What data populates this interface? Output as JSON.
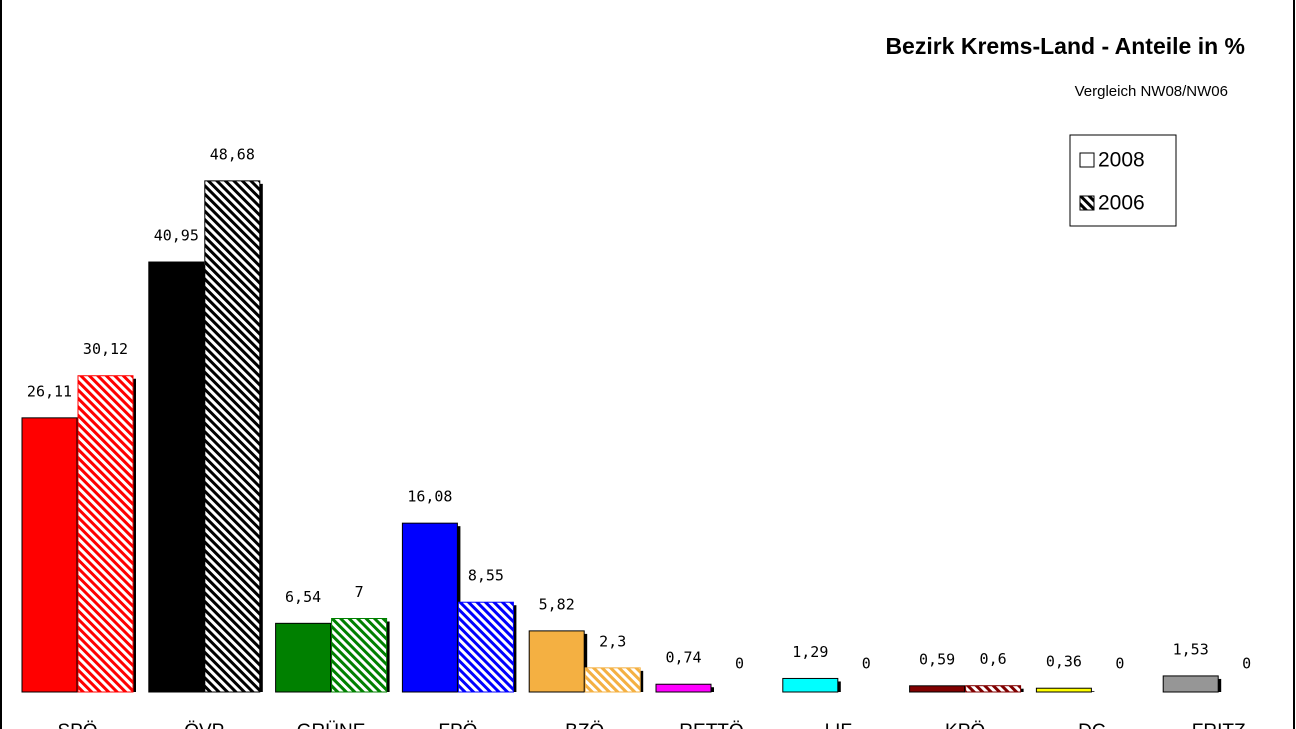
{
  "chart_data": {
    "type": "bar",
    "title": "Bezirk Krems-Land - Anteile in %",
    "subtitle": "Vergleich NW08/NW06",
    "categories": [
      "SPÖ",
      "ÖVP",
      "GRÜNE",
      "FPÖ",
      "BZÖ",
      "RETTÖ",
      "LIF",
      "KPÖ",
      "DC",
      "FRITZ"
    ],
    "colors": [
      "#ff0000",
      "#000000",
      "#008000",
      "#0000ff",
      "#f4b042",
      "#ff00ff",
      "#00ffff",
      "#800000",
      "#ffff00",
      "#969696"
    ],
    "series": [
      {
        "name": "2008",
        "pattern": "solid",
        "values": [
          26.11,
          40.95,
          6.54,
          16.08,
          5.82,
          0.74,
          1.29,
          0.59,
          0.36,
          1.53
        ],
        "value_labels": [
          "26,11",
          "40,95",
          "6,54",
          "16,08",
          "5,82",
          "0,74",
          "1,29",
          "0,59",
          "0,36",
          "1,53"
        ]
      },
      {
        "name": "2006",
        "pattern": "hatched",
        "values": [
          30.12,
          48.68,
          7,
          8.55,
          2.3,
          0,
          0,
          0.6,
          0,
          0
        ],
        "value_labels": [
          "30,12",
          "48,68",
          "7",
          "8,55",
          "2,3",
          "0",
          "0",
          "0,6",
          "0",
          "0"
        ]
      }
    ],
    "legend": "top-right"
  }
}
